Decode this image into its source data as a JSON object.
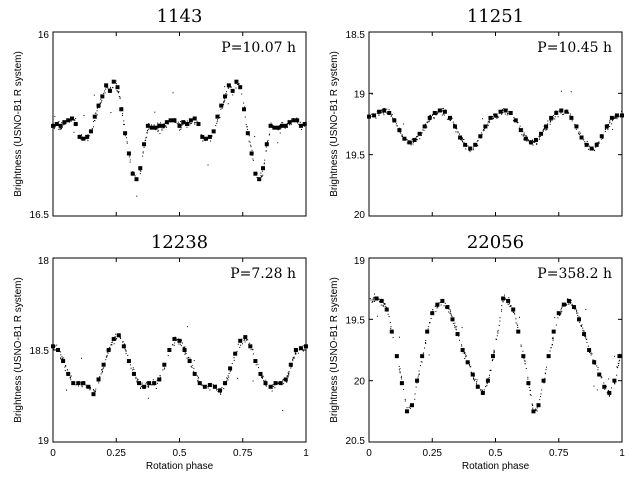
{
  "chart_data": [
    {
      "type": "scatter",
      "title": "1143",
      "period": "P=10.07 h",
      "xlabel": "",
      "ylabel": "Brightness (USNO-B1 R system)",
      "xlim": [
        0,
        1
      ],
      "ylim": [
        16.5,
        16
      ],
      "y_inverted": true,
      "yticks": [
        "16",
        "16.5"
      ],
      "xticks": [],
      "series": [
        {
          "x": [
            0.0,
            0.015,
            0.03,
            0.045,
            0.06,
            0.075,
            0.09,
            0.105,
            0.12,
            0.135,
            0.15,
            0.165,
            0.18,
            0.195,
            0.21,
            0.225,
            0.24,
            0.255,
            0.27,
            0.285,
            0.3,
            0.315,
            0.33,
            0.345,
            0.36,
            0.375,
            0.39,
            0.405,
            0.42,
            0.435,
            0.45,
            0.465,
            0.48,
            0.5,
            0.515,
            0.53,
            0.545,
            0.56,
            0.575,
            0.59,
            0.605,
            0.62,
            0.635,
            0.65,
            0.665,
            0.68,
            0.695,
            0.71,
            0.725,
            0.74,
            0.755,
            0.77,
            0.785,
            0.8,
            0.815,
            0.83,
            0.845,
            0.86,
            0.875,
            0.89,
            0.905,
            0.92,
            0.935,
            0.95,
            0.965,
            0.98,
            0.995
          ],
          "y": [
            16.255,
            16.25,
            16.255,
            16.245,
            16.24,
            16.235,
            16.25,
            16.285,
            16.29,
            16.285,
            16.27,
            16.23,
            16.2,
            16.175,
            16.145,
            16.16,
            16.135,
            16.15,
            16.21,
            16.275,
            16.33,
            16.385,
            16.4,
            16.37,
            16.305,
            16.255,
            16.26,
            16.26,
            16.255,
            16.255,
            16.245,
            16.24,
            16.24,
            16.255,
            16.245,
            16.25,
            16.24,
            16.235,
            16.25,
            16.285,
            16.29,
            16.285,
            16.27,
            16.23,
            16.2,
            16.175,
            16.145,
            16.16,
            16.135,
            16.15,
            16.21,
            16.275,
            16.33,
            16.385,
            16.4,
            16.37,
            16.305,
            16.255,
            16.26,
            16.26,
            16.255,
            16.255,
            16.245,
            16.24,
            16.24,
            16.255,
            16.25
          ]
        }
      ]
    },
    {
      "type": "scatter",
      "title": "11251",
      "period": "P=10.45 h",
      "xlabel": "",
      "ylabel": "Brightness (USNO-B1 R system)",
      "xlim": [
        0,
        1
      ],
      "ylim": [
        20,
        18.5
      ],
      "y_inverted": true,
      "yticks": [
        "18.5",
        "19",
        "19.5",
        "20"
      ],
      "xticks": [],
      "series": [
        {
          "x": [
            0.0,
            0.02,
            0.04,
            0.06,
            0.08,
            0.1,
            0.12,
            0.14,
            0.16,
            0.18,
            0.2,
            0.22,
            0.24,
            0.26,
            0.28,
            0.3,
            0.32,
            0.34,
            0.36,
            0.38,
            0.4,
            0.42,
            0.44,
            0.46,
            0.48,
            0.5,
            0.52,
            0.54,
            0.56,
            0.58,
            0.6,
            0.62,
            0.64,
            0.66,
            0.68,
            0.7,
            0.72,
            0.74,
            0.76,
            0.78,
            0.8,
            0.82,
            0.84,
            0.86,
            0.88,
            0.9,
            0.92,
            0.94,
            0.96,
            0.98,
            1.0
          ],
          "y": [
            19.19,
            19.18,
            19.15,
            19.14,
            19.16,
            19.22,
            19.3,
            19.37,
            19.4,
            19.38,
            19.33,
            19.27,
            19.2,
            19.16,
            19.14,
            19.15,
            19.2,
            19.27,
            19.36,
            19.42,
            19.45,
            19.42,
            19.35,
            19.27,
            19.2,
            19.18,
            19.15,
            19.14,
            19.16,
            19.22,
            19.3,
            19.37,
            19.4,
            19.38,
            19.33,
            19.27,
            19.2,
            19.16,
            19.14,
            19.15,
            19.2,
            19.27,
            19.36,
            19.42,
            19.45,
            19.42,
            19.35,
            19.27,
            19.2,
            19.18,
            19.18
          ]
        }
      ]
    },
    {
      "type": "scatter",
      "title": "12238",
      "period": "P=7.28 h",
      "xlabel": "Rotation phase",
      "ylabel": "Brightness (USNO-B1 R system)",
      "xlim": [
        0,
        1
      ],
      "ylim": [
        19,
        18
      ],
      "y_inverted": true,
      "yticks": [
        "18",
        "18.5",
        "19"
      ],
      "xticks": [
        "0",
        "0.25",
        "0.5",
        "0.75",
        "1"
      ],
      "series": [
        {
          "x": [
            0.0,
            0.02,
            0.04,
            0.06,
            0.08,
            0.1,
            0.12,
            0.14,
            0.16,
            0.18,
            0.2,
            0.22,
            0.24,
            0.26,
            0.28,
            0.3,
            0.32,
            0.34,
            0.36,
            0.38,
            0.4,
            0.42,
            0.44,
            0.46,
            0.48,
            0.5,
            0.52,
            0.54,
            0.56,
            0.58,
            0.6,
            0.62,
            0.64,
            0.66,
            0.68,
            0.7,
            0.72,
            0.74,
            0.76,
            0.78,
            0.8,
            0.82,
            0.84,
            0.86,
            0.88,
            0.9,
            0.92,
            0.94,
            0.96,
            0.98,
            1.0
          ],
          "y": [
            18.48,
            18.5,
            18.56,
            18.63,
            18.68,
            18.68,
            18.68,
            18.7,
            18.74,
            18.66,
            18.58,
            18.5,
            18.44,
            18.42,
            18.48,
            18.56,
            18.63,
            18.68,
            18.7,
            18.68,
            18.68,
            18.66,
            18.58,
            18.5,
            18.44,
            18.45,
            18.5,
            18.56,
            18.63,
            18.68,
            18.7,
            18.69,
            18.7,
            18.72,
            18.68,
            18.6,
            18.52,
            18.45,
            18.43,
            18.48,
            18.56,
            18.63,
            18.68,
            18.7,
            18.68,
            18.68,
            18.66,
            18.58,
            18.5,
            18.49,
            18.48
          ]
        }
      ]
    },
    {
      "type": "scatter",
      "title": "22056",
      "period": "P=358.2 h",
      "xlabel": "Rotation phase",
      "ylabel": "Brightness (USNO-B1 R system)",
      "xlim": [
        0,
        1
      ],
      "ylim": [
        20.5,
        19
      ],
      "y_inverted": true,
      "yticks": [
        "19",
        "19.5",
        "20",
        "20.5"
      ],
      "xticks": [
        "0",
        "0.25",
        "0.5",
        "0.75",
        "1"
      ],
      "series": [
        {
          "x": [
            0.03,
            0.05,
            0.07,
            0.09,
            0.11,
            0.13,
            0.15,
            0.17,
            0.19,
            0.21,
            0.23,
            0.25,
            0.27,
            0.29,
            0.31,
            0.33,
            0.35,
            0.37,
            0.39,
            0.41,
            0.43,
            0.45,
            0.47,
            0.49,
            0.53,
            0.55,
            0.57,
            0.59,
            0.61,
            0.63,
            0.65,
            0.67,
            0.69,
            0.71,
            0.73,
            0.75,
            0.77,
            0.79,
            0.81,
            0.83,
            0.85,
            0.87,
            0.89,
            0.91,
            0.93,
            0.95,
            0.97,
            0.99
          ],
          "y": [
            19.33,
            19.35,
            19.42,
            19.6,
            19.8,
            20.02,
            20.25,
            20.2,
            20.0,
            19.8,
            19.6,
            19.45,
            19.38,
            19.35,
            19.4,
            19.5,
            19.62,
            19.75,
            19.85,
            19.95,
            20.05,
            20.1,
            20.0,
            19.8,
            19.33,
            19.35,
            19.42,
            19.6,
            19.8,
            20.02,
            20.25,
            20.2,
            20.0,
            19.8,
            19.6,
            19.45,
            19.38,
            19.35,
            19.4,
            19.5,
            19.62,
            19.75,
            19.85,
            19.95,
            20.05,
            20.1,
            20.0,
            19.8
          ]
        }
      ]
    }
  ]
}
